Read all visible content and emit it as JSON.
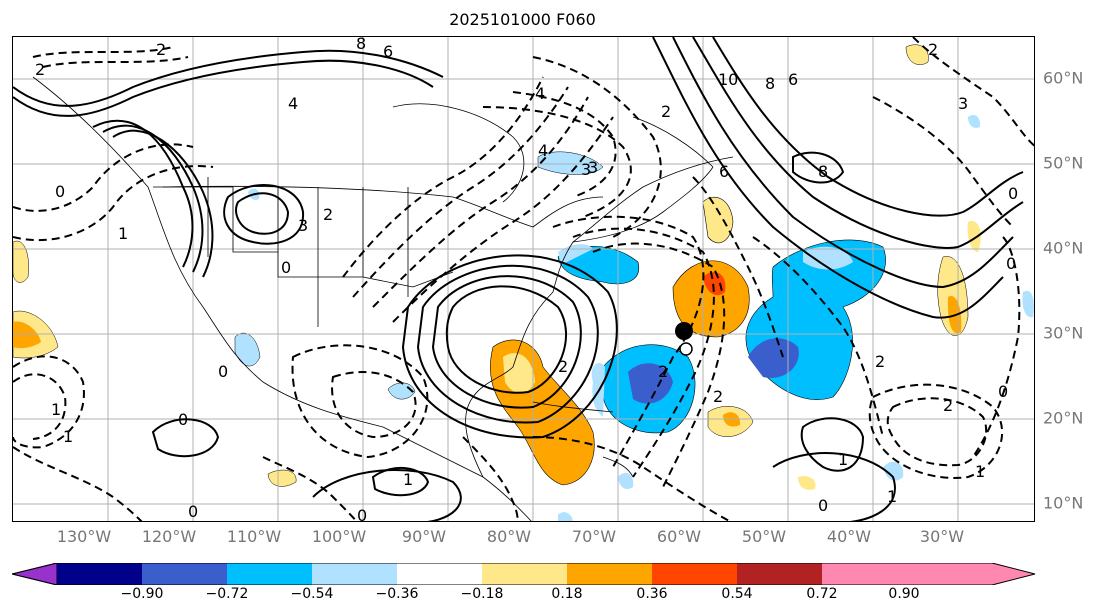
{
  "title": "2025101000 F060",
  "lon_labels": [
    "130°W",
    "120°W",
    "110°W",
    "100°W",
    "90°W",
    "80°W",
    "70°W",
    "60°W",
    "50°W",
    "40°W",
    "30°W"
  ],
  "lat_labels": [
    "60°N",
    "50°N",
    "40°N",
    "30°N",
    "20°N",
    "10°N"
  ],
  "colorbar": {
    "ticks": [
      "−0.90",
      "−0.72",
      "−0.54",
      "−0.36",
      "−0.18",
      "0.18",
      "0.36",
      "0.54",
      "0.72",
      "0.90"
    ],
    "colors": [
      "#9932cc",
      "#00008b",
      "#3a5fcd",
      "#00bfff",
      "#b0e2ff",
      "#ffffff",
      "#ffe88a",
      "#ffa500",
      "#ff4500",
      "#b22222",
      "#ff88b0"
    ]
  },
  "contour_labels": [
    "2",
    "2",
    "6",
    "8",
    "4",
    "3",
    "2",
    "1",
    "0",
    "3",
    "4",
    "0",
    "2",
    "6",
    "10",
    "8",
    "6",
    "2",
    "8",
    "0",
    "0",
    "3",
    "2",
    "2",
    "1",
    "0",
    "1",
    "0",
    "0",
    "1",
    "1",
    "0",
    "2",
    "3",
    "2",
    "4",
    "2",
    "0",
    "0",
    "1",
    "1"
  ],
  "markers": [
    {
      "name": "storm-center"
    }
  ]
}
